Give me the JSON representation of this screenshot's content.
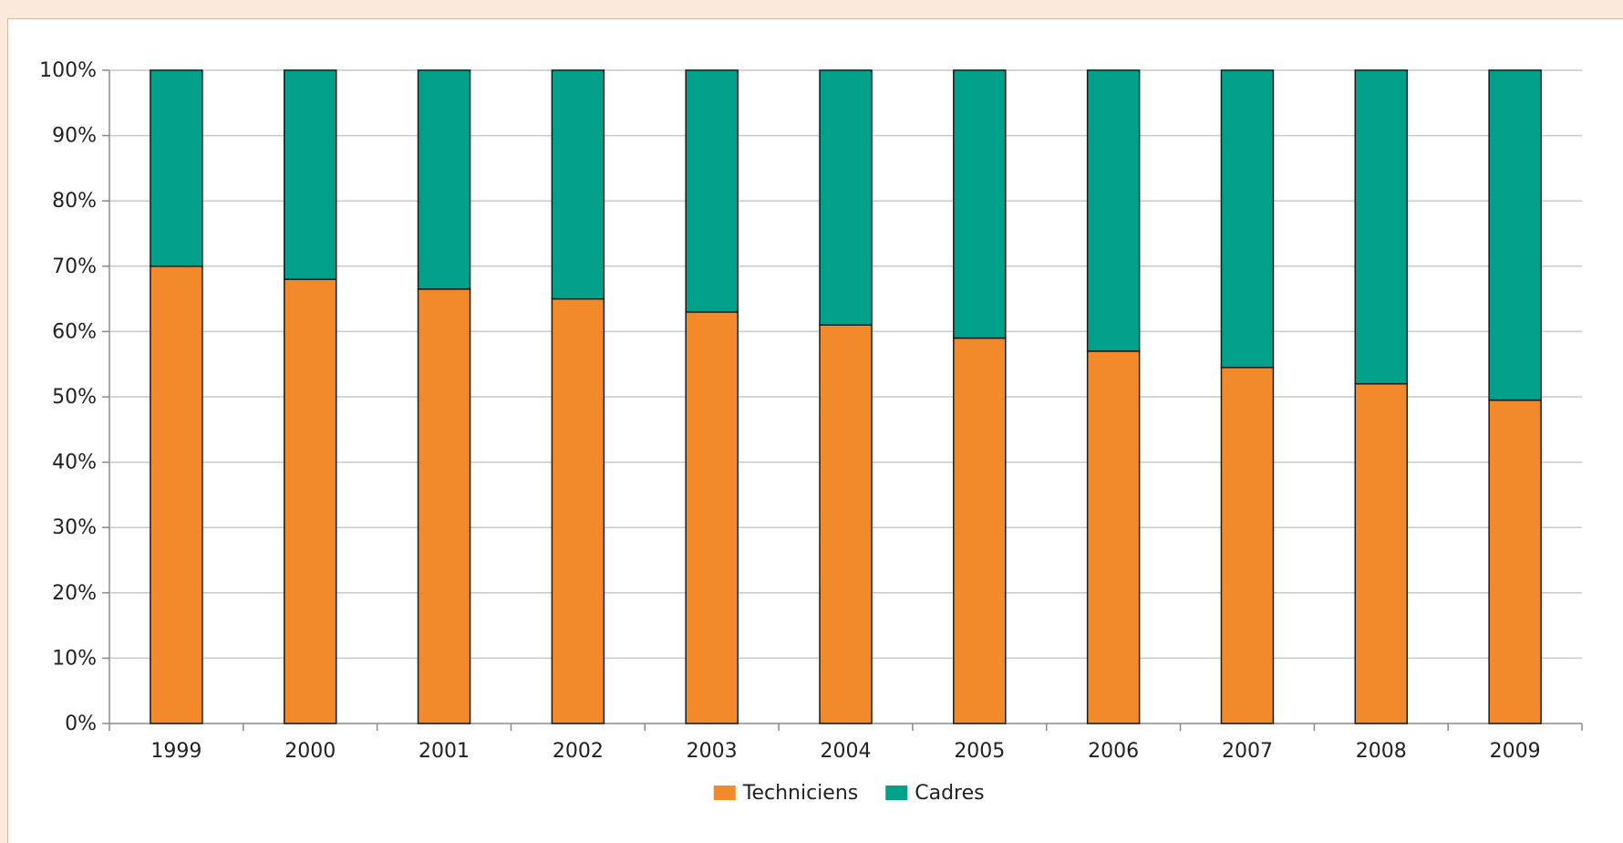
{
  "chart_data": {
    "type": "bar",
    "stacked": true,
    "categories": [
      "1999",
      "2000",
      "2001",
      "2002",
      "2003",
      "2004",
      "2005",
      "2006",
      "2007",
      "2008",
      "2009"
    ],
    "series": [
      {
        "name": "Techniciens",
        "color": "#f28a2c",
        "values": [
          70,
          68,
          66.5,
          65,
          63,
          61,
          59,
          57,
          54.5,
          52,
          49.5
        ]
      },
      {
        "name": "Cadres",
        "color": "#00a08a",
        "values": [
          30,
          32,
          33.5,
          35,
          37,
          39,
          41,
          43,
          45.5,
          48,
          50.5
        ]
      }
    ],
    "y_ticks": [
      "0%",
      "10%",
      "20%",
      "30%",
      "40%",
      "50%",
      "60%",
      "70%",
      "80%",
      "90%",
      "100%"
    ],
    "ylim": [
      0,
      100
    ],
    "grid": true,
    "legend_position": "bottom-center",
    "title": "",
    "xlabel": "",
    "ylabel": ""
  }
}
